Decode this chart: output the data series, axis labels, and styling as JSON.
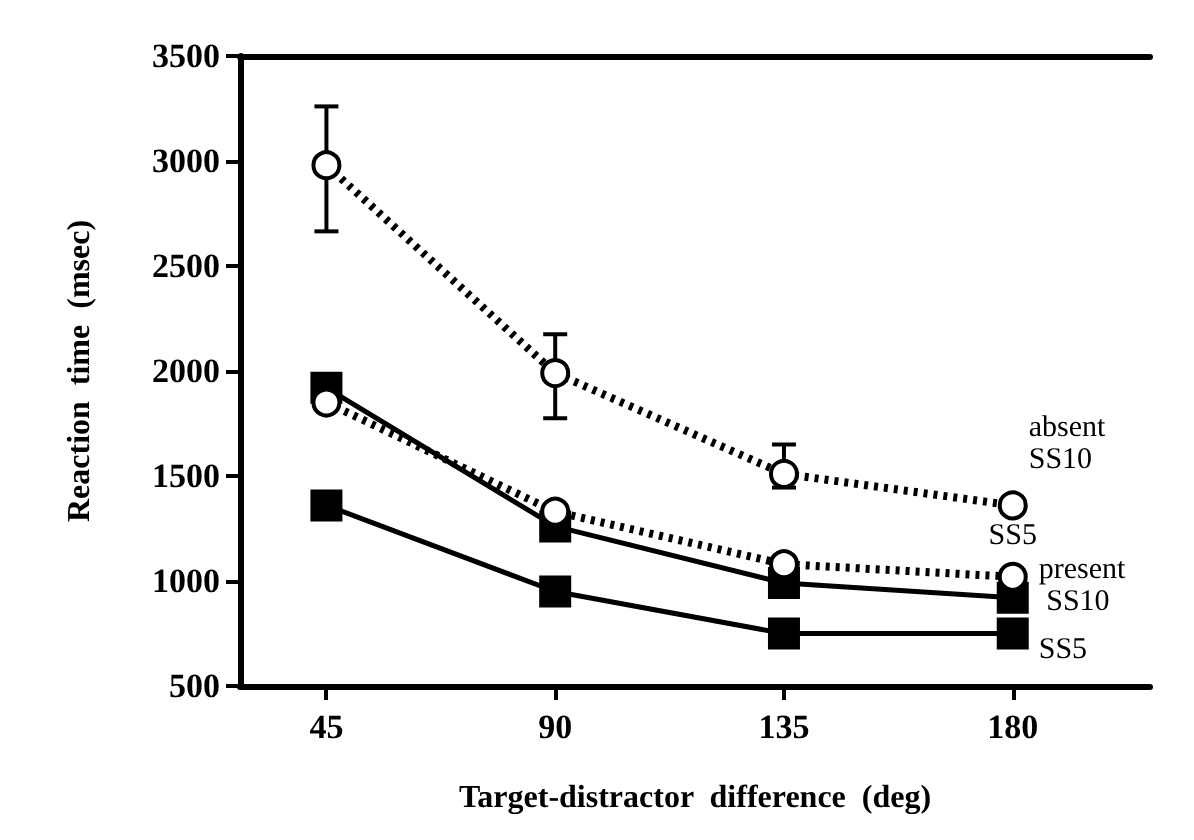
{
  "chart_data": {
    "type": "line",
    "xlabel": "Target-distractor  difference  (deg)",
    "ylabel": "Reaction  time  (msec)",
    "x": [
      45,
      90,
      135,
      180
    ],
    "xlim": [
      28,
      207
    ],
    "xticks": [
      45,
      90,
      135,
      180
    ],
    "ylim": [
      500,
      3500
    ],
    "yticks": [
      500,
      1000,
      1500,
      2000,
      2500,
      3000,
      3500
    ],
    "grid": false,
    "legend": false,
    "series": [
      {
        "name": "absent SS10",
        "color": "#000000",
        "marker": "circle",
        "line_style": "dotted",
        "values": [
          2980,
          1990,
          1510,
          1360
        ],
        "errors": [
          [
            2665,
            3260
          ],
          [
            1775,
            2175
          ],
          [
            1445,
            1650
          ],
          null
        ]
      },
      {
        "name": "SS5",
        "color": "#000000",
        "marker": "circle",
        "line_style": "dotted",
        "values": [
          1850,
          1330,
          1080,
          1020
        ]
      },
      {
        "name": "present SS10",
        "color": "#000000",
        "marker": "square",
        "line_style": "solid",
        "values": [
          1920,
          1260,
          990,
          920
        ]
      },
      {
        "name": "SS5",
        "color": "#000000",
        "marker": "square",
        "line_style": "solid",
        "values": [
          1360,
          950,
          750,
          750
        ]
      }
    ]
  }
}
